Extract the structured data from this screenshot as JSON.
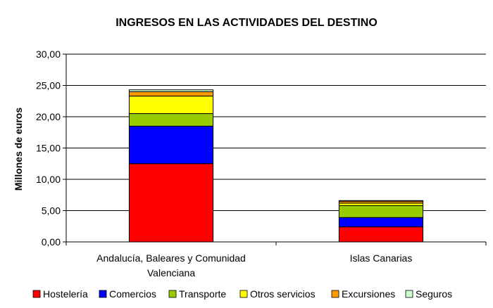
{
  "chart_data": {
    "type": "bar",
    "stacked": true,
    "title": "INGRESOS EN LAS ACTIVIDADES DEL DESTINO",
    "xlabel": "",
    "ylabel": "Millones de euros",
    "ylim": [
      0,
      30
    ],
    "yticks": [
      "0,00",
      "5,00",
      "10,00",
      "15,00",
      "20,00",
      "25,00",
      "30,00"
    ],
    "grid": true,
    "legend_position": "bottom",
    "categories": [
      [
        "Andalucía, Baleares y Comunidad",
        "Valenciana"
      ],
      [
        "Islas Canarias"
      ]
    ],
    "series": [
      {
        "name": "Hostelería",
        "color": "#ff0000",
        "values": [
          12.5,
          2.4
        ]
      },
      {
        "name": "Comercios",
        "color": "#0000ff",
        "values": [
          6.0,
          1.5
        ]
      },
      {
        "name": "Transporte",
        "color": "#99cc00",
        "values": [
          2.0,
          1.9
        ]
      },
      {
        "name": "Otros servicios",
        "color": "#ffff00",
        "values": [
          2.8,
          0.4
        ]
      },
      {
        "name": "Excursiones",
        "color": "#ff9900",
        "values": [
          0.7,
          0.3
        ]
      },
      {
        "name": "Seguros",
        "color": "#ccffcc",
        "values": [
          0.3,
          0.1
        ]
      }
    ]
  }
}
